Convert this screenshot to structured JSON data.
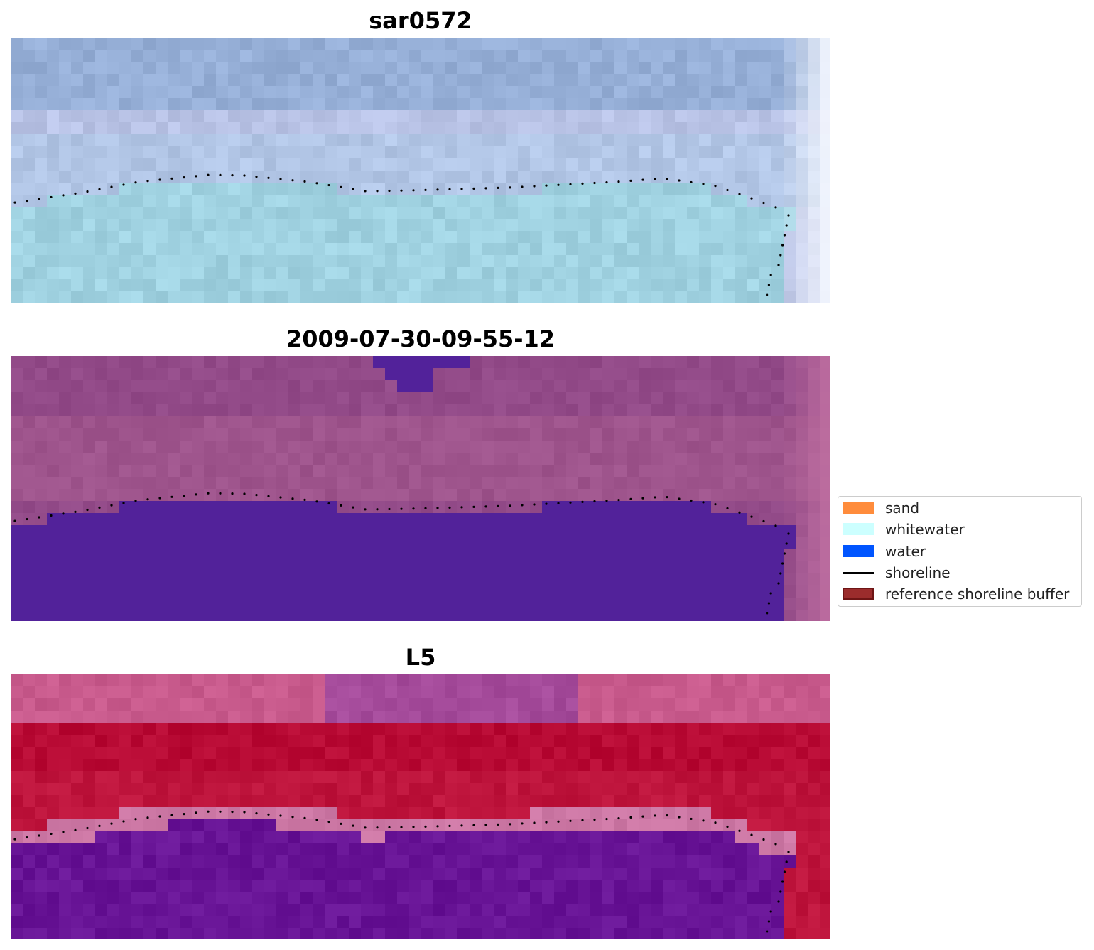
{
  "panels": [
    {
      "title": "sar0572",
      "palette": "sar"
    },
    {
      "title": "2009-07-30-09-55-12",
      "palette": "classified"
    },
    {
      "title": "L5",
      "palette": "mndwi"
    }
  ],
  "legend": {
    "items": [
      {
        "label": "sand",
        "color": "#ff8c3c",
        "kind": "patch"
      },
      {
        "label": "whitewater",
        "color": "#ccffff",
        "kind": "patch"
      },
      {
        "label": "water",
        "color": "#0055ff",
        "kind": "patch"
      },
      {
        "label": "shoreline",
        "color": "#000000",
        "kind": "line"
      },
      {
        "label": "reference shoreline buffer",
        "color": "#9b2c2c",
        "kind": "patch"
      }
    ]
  },
  "colors": {
    "classified_land": "#924a88",
    "classified_water": "#52229a",
    "shoreline_points": "#000000"
  }
}
